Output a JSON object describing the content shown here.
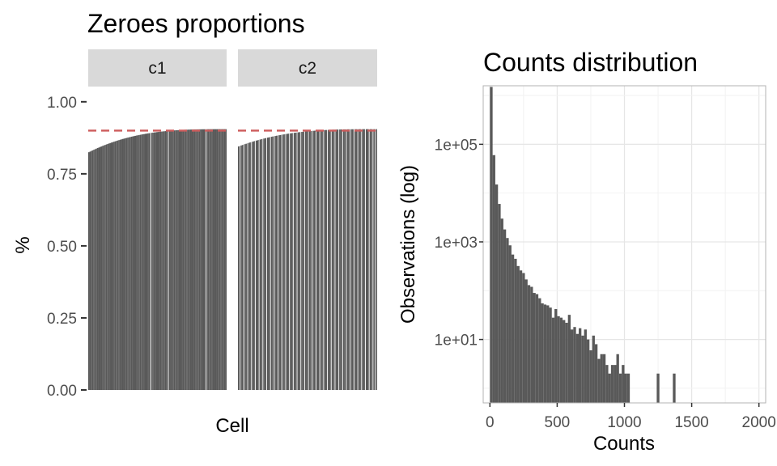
{
  "chart_data": [
    {
      "type": "bar",
      "title": "Zeroes proportions",
      "xlabel": "Cell",
      "ylabel": "%",
      "ylim": [
        0,
        1.05
      ],
      "yticks": [
        "0.00",
        "0.25",
        "0.50",
        "0.75",
        "1.00"
      ],
      "reference_line": {
        "y": 0.9,
        "style": "dashed",
        "color": "#cd5c5c"
      },
      "bar_color": "#595959",
      "grid": false,
      "facets": [
        {
          "label": "c1",
          "n_bars": 110,
          "min_value": 0.825,
          "max_value": 0.905
        },
        {
          "label": "c2",
          "n_bars": 110,
          "min_value": 0.845,
          "max_value": 0.905
        }
      ]
    },
    {
      "type": "bar",
      "title": "Counts distribution",
      "xlabel": "Counts",
      "ylabel": "Observations (log)",
      "xlim": [
        -50,
        2050
      ],
      "ylim_log10": [
        -0.3,
        6.2
      ],
      "yscale": "log",
      "xticks": [
        "0",
        "500",
        "1000",
        "1500",
        "2000"
      ],
      "yticks": [
        "1e+01",
        "1e+03",
        "1e+05"
      ],
      "bar_color": "#595959",
      "grid": true,
      "bin_width": 20,
      "bin_starts": [
        0,
        20,
        40,
        60,
        80,
        100,
        120,
        140,
        160,
        180,
        200,
        220,
        240,
        260,
        280,
        300,
        320,
        340,
        360,
        380,
        400,
        420,
        440,
        460,
        480,
        500,
        520,
        540,
        560,
        580,
        600,
        620,
        640,
        660,
        680,
        700,
        720,
        740,
        760,
        780,
        800,
        820,
        840,
        860,
        880,
        900,
        920,
        940,
        960,
        980,
        1000,
        1020,
        1240,
        1360
      ],
      "counts": [
        1500000,
        60000,
        15000,
        6000,
        3000,
        1800,
        1200,
        850,
        550,
        450,
        320,
        260,
        230,
        170,
        130,
        120,
        90,
        85,
        70,
        55,
        52,
        50,
        45,
        28,
        42,
        30,
        28,
        25,
        22,
        32,
        16,
        18,
        13,
        17,
        12,
        16,
        10,
        6,
        12,
        8,
        4,
        5,
        5,
        3,
        2,
        3,
        3,
        5,
        2,
        3,
        2,
        2,
        2,
        2
      ]
    }
  ]
}
